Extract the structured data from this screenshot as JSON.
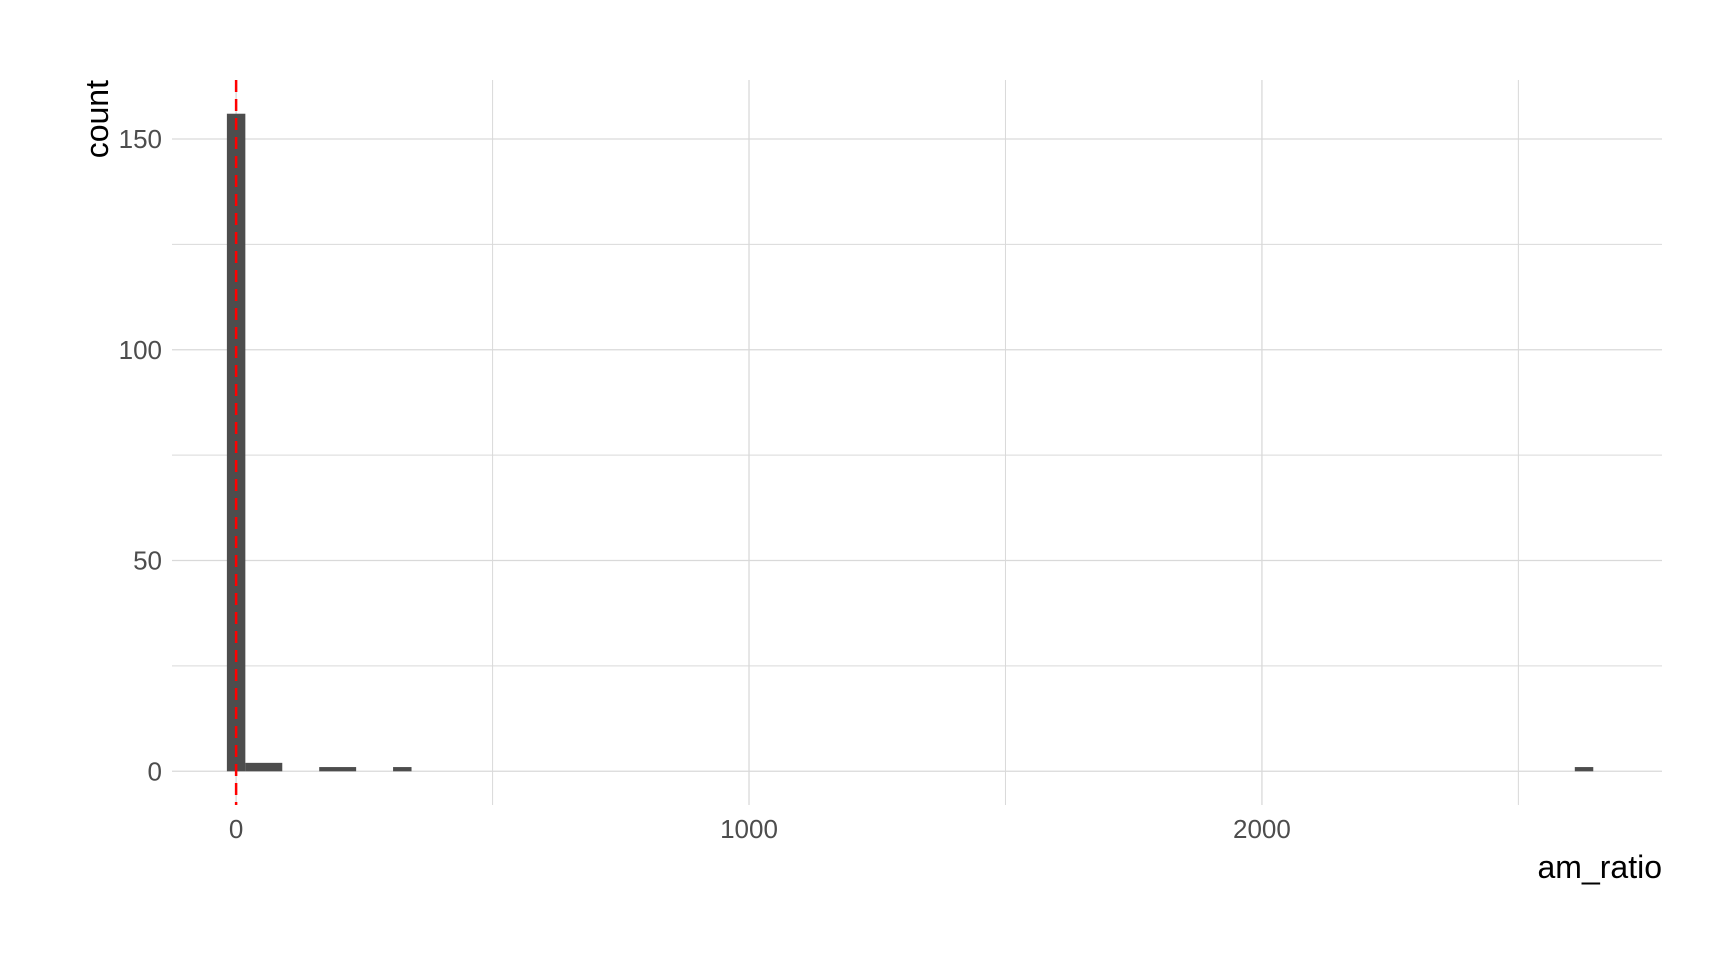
{
  "chart_data": {
    "type": "bar",
    "subtype": "histogram",
    "xlabel": "am_ratio",
    "ylabel": "count",
    "xlim": [
      -125,
      2780
    ],
    "ylim": [
      -8,
      164
    ],
    "x_ticks": [
      0,
      1000,
      2000
    ],
    "x_tick_labels": [
      "0",
      "1000",
      "2000"
    ],
    "x_minor_gridlines": [
      500,
      1500,
      2500
    ],
    "y_ticks": [
      0,
      50,
      100,
      150
    ],
    "y_tick_labels": [
      "0",
      "50",
      "100",
      "150"
    ],
    "y_minor_gridlines": [
      25,
      75,
      125
    ],
    "grid": true,
    "bin_width": 36,
    "bins": [
      {
        "x_start": -18,
        "x_end": 18,
        "count": 156
      },
      {
        "x_start": 18,
        "x_end": 90,
        "count": 2
      },
      {
        "x_start": 162,
        "x_end": 234,
        "count": 1
      },
      {
        "x_start": 306,
        "x_end": 342,
        "count": 1
      },
      {
        "x_start": 2610,
        "x_end": 2646,
        "count": 1
      }
    ],
    "vline": {
      "x": 0,
      "color": "#ff0000",
      "style": "dashed"
    },
    "colors": {
      "bar": "#4d4d4d",
      "grid": "#d9d9d9",
      "vline": "#ff0000"
    }
  }
}
